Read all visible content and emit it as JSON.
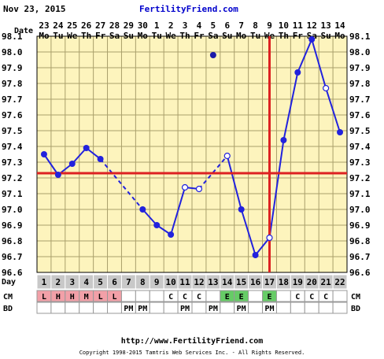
{
  "header": {
    "date": "Nov 23, 2015",
    "site": "FertilityFriend.com"
  },
  "footer": {
    "url": "http://www.FertilityFriend.com",
    "copyright": "Copyright 1998-2015 Tamtris Web Services Inc. - All Rights Reserved."
  },
  "labels": {
    "date_row": "Date",
    "day_row": "Day",
    "cm_row": "CM",
    "bd_row": "BD"
  },
  "colors": {
    "plot_bg": "#fdf4bd",
    "grid": "#a99f6b",
    "line": "#2222dd",
    "coverline": "#dd2222",
    "day_cell": "#c8c8c8",
    "cm_pink": "#f2a0a8",
    "cm_green": "#66cc66"
  },
  "chart_data": {
    "type": "line",
    "ylim": [
      96.6,
      98.1
    ],
    "y_ticks": [
      "98.1",
      "98.0",
      "97.9",
      "97.8",
      "97.7",
      "97.6",
      "97.5",
      "97.4",
      "97.3",
      "97.2",
      "97.1",
      "97.0",
      "96.9",
      "96.8",
      "96.7",
      "96.6"
    ],
    "x_dates": [
      {
        "day": "23",
        "wd": "Mo"
      },
      {
        "day": "24",
        "wd": "Tu"
      },
      {
        "day": "25",
        "wd": "We"
      },
      {
        "day": "26",
        "wd": "Th"
      },
      {
        "day": "27",
        "wd": "Fr"
      },
      {
        "day": "28",
        "wd": "Sa"
      },
      {
        "day": "29",
        "wd": "Su"
      },
      {
        "day": "30",
        "wd": "Mo"
      },
      {
        "day": "1",
        "wd": "Tu"
      },
      {
        "day": "2",
        "wd": "We"
      },
      {
        "day": "3",
        "wd": "Th"
      },
      {
        "day": "4",
        "wd": "Fr"
      },
      {
        "day": "5",
        "wd": "Sa"
      },
      {
        "day": "6",
        "wd": "Su"
      },
      {
        "day": "7",
        "wd": "Mo"
      },
      {
        "day": "8",
        "wd": "Tu"
      },
      {
        "day": "9",
        "wd": "We"
      },
      {
        "day": "10",
        "wd": "Th"
      },
      {
        "day": "11",
        "wd": "Fr"
      },
      {
        "day": "12",
        "wd": "Sa"
      },
      {
        "day": "13",
        "wd": "Su"
      },
      {
        "day": "14",
        "wd": "Mo"
      }
    ],
    "cycle_days": [
      "1",
      "2",
      "3",
      "4",
      "5",
      "6",
      "7",
      "8",
      "9",
      "10",
      "11",
      "12",
      "13",
      "14",
      "15",
      "16",
      "17",
      "18",
      "19",
      "20",
      "21",
      "22"
    ],
    "temperatures": [
      97.35,
      97.22,
      97.29,
      97.39,
      97.32,
      null,
      null,
      97.0,
      96.9,
      96.84,
      97.14,
      97.13,
      97.98,
      97.34,
      97.0,
      96.71,
      96.82,
      97.44,
      97.87,
      98.08,
      97.77,
      97.49
    ],
    "open_points": [
      false,
      false,
      false,
      false,
      false,
      false,
      false,
      false,
      false,
      false,
      true,
      true,
      false,
      true,
      false,
      false,
      true,
      false,
      false,
      false,
      true,
      false
    ],
    "discarded": [
      false,
      false,
      false,
      false,
      false,
      false,
      false,
      false,
      false,
      false,
      false,
      false,
      true,
      false,
      false,
      false,
      false,
      false,
      false,
      false,
      false,
      false
    ],
    "coverline": 97.23,
    "ovulation_day": 17,
    "cm": [
      "L",
      "H",
      "H",
      "M",
      "L",
      "L",
      "",
      "",
      "",
      "C",
      "C",
      "C",
      "",
      "E",
      "E",
      "",
      "E",
      "",
      "C",
      "C",
      "C",
      ""
    ],
    "bd": [
      "",
      "",
      "",
      "",
      "",
      "",
      "PM",
      "PM",
      "",
      "",
      "PM",
      "",
      "PM",
      "",
      "PM",
      "",
      "PM",
      "",
      "",
      "",
      "",
      ""
    ]
  }
}
